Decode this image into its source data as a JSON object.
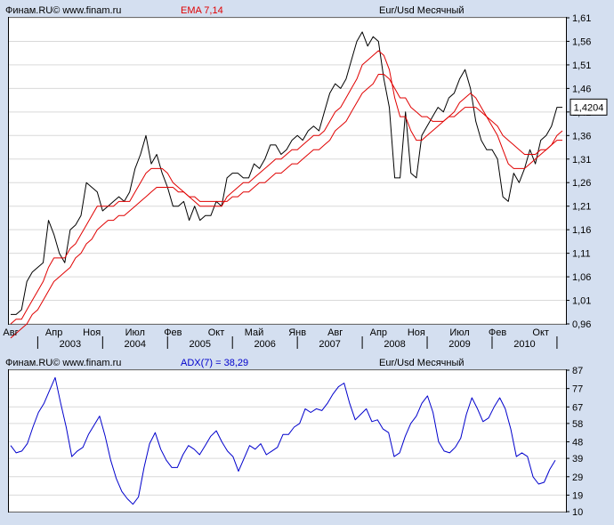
{
  "colors": {
    "background": "#d4dff0",
    "plot_background": "#ffffff",
    "price_line": "#000000",
    "ema_line": "#e00000",
    "adx_line": "#0000cc",
    "current_value_box": "#ffffff",
    "grid": "#d9d9d9"
  },
  "top_header": {
    "source": "Финам.RU© www.finam.ru",
    "indicator": "EMA 7,14",
    "instrument": "Eur/Usd Месячный"
  },
  "bottom_header": {
    "source": "Финам.RU© www.finam.ru",
    "indicator": "ADX(7) = 38,29",
    "instrument": "Eur/Usd Месячный"
  },
  "x_axis": {
    "month_labels": [
      "Авг",
      "Апр",
      "Ноя",
      "Июл",
      "Фев",
      "Окт",
      "Май",
      "Янв",
      "Авг",
      "Апр",
      "Ноя",
      "Июл",
      "Фев",
      "Окт"
    ],
    "year_labels": [
      "2003",
      "2004",
      "2005",
      "2006",
      "2007",
      "2008",
      "2009",
      "2010"
    ]
  },
  "chart_data": [
    {
      "type": "line",
      "title": "",
      "x_start": "2002-08",
      "x_end": "2010-12",
      "ylim": [
        0.96,
        1.61
      ],
      "yticks": [
        "1,61",
        "1,56",
        "1,51",
        "1,46",
        "1,41",
        "1,36",
        "1,31",
        "1,26",
        "1,21",
        "1,16",
        "1,11",
        "1,06",
        "1,01",
        "0,96"
      ],
      "grid": false,
      "current_value_label": "1,4204",
      "current_value": 1.4204,
      "series": [
        {
          "name": "Eur/Usd",
          "color": "#000000",
          "values": [
            0.98,
            0.98,
            0.99,
            1.05,
            1.07,
            1.08,
            1.09,
            1.18,
            1.15,
            1.11,
            1.09,
            1.16,
            1.17,
            1.19,
            1.26,
            1.25,
            1.24,
            1.2,
            1.21,
            1.22,
            1.23,
            1.22,
            1.24,
            1.29,
            1.32,
            1.36,
            1.3,
            1.32,
            1.28,
            1.25,
            1.21,
            1.21,
            1.22,
            1.18,
            1.21,
            1.18,
            1.19,
            1.19,
            1.22,
            1.21,
            1.27,
            1.28,
            1.28,
            1.27,
            1.27,
            1.3,
            1.29,
            1.31,
            1.34,
            1.34,
            1.32,
            1.33,
            1.35,
            1.36,
            1.35,
            1.37,
            1.38,
            1.37,
            1.41,
            1.45,
            1.47,
            1.46,
            1.48,
            1.52,
            1.56,
            1.58,
            1.55,
            1.57,
            1.56,
            1.48,
            1.42,
            1.27,
            1.27,
            1.41,
            1.28,
            1.27,
            1.36,
            1.38,
            1.4,
            1.42,
            1.41,
            1.44,
            1.45,
            1.48,
            1.5,
            1.46,
            1.39,
            1.35,
            1.33,
            1.33,
            1.31,
            1.23,
            1.22,
            1.28,
            1.26,
            1.29,
            1.33,
            1.3,
            1.35,
            1.36,
            1.38,
            1.42,
            1.42
          ]
        },
        {
          "name": "EMA 7",
          "color": "#e00000",
          "values": [
            0.96,
            0.97,
            0.97,
            0.99,
            1.01,
            1.03,
            1.05,
            1.08,
            1.1,
            1.1,
            1.1,
            1.12,
            1.13,
            1.15,
            1.17,
            1.19,
            1.21,
            1.21,
            1.21,
            1.21,
            1.22,
            1.22,
            1.22,
            1.24,
            1.26,
            1.28,
            1.29,
            1.29,
            1.29,
            1.28,
            1.26,
            1.25,
            1.24,
            1.23,
            1.22,
            1.21,
            1.21,
            1.21,
            1.21,
            1.21,
            1.23,
            1.24,
            1.25,
            1.26,
            1.26,
            1.27,
            1.28,
            1.29,
            1.3,
            1.31,
            1.31,
            1.32,
            1.33,
            1.33,
            1.34,
            1.35,
            1.36,
            1.36,
            1.37,
            1.39,
            1.41,
            1.42,
            1.44,
            1.46,
            1.48,
            1.51,
            1.52,
            1.53,
            1.54,
            1.53,
            1.5,
            1.44,
            1.4,
            1.4,
            1.37,
            1.35,
            1.35,
            1.36,
            1.37,
            1.38,
            1.39,
            1.4,
            1.41,
            1.43,
            1.44,
            1.45,
            1.44,
            1.42,
            1.4,
            1.38,
            1.36,
            1.33,
            1.3,
            1.29,
            1.29,
            1.29,
            1.3,
            1.31,
            1.32,
            1.33,
            1.34,
            1.36,
            1.37
          ]
        },
        {
          "name": "EMA 14",
          "color": "#e00000",
          "values": [
            0.93,
            0.94,
            0.95,
            0.96,
            0.98,
            0.99,
            1.01,
            1.03,
            1.05,
            1.06,
            1.07,
            1.08,
            1.1,
            1.11,
            1.13,
            1.14,
            1.16,
            1.17,
            1.18,
            1.18,
            1.19,
            1.19,
            1.2,
            1.21,
            1.22,
            1.23,
            1.24,
            1.25,
            1.25,
            1.25,
            1.25,
            1.24,
            1.24,
            1.23,
            1.23,
            1.22,
            1.22,
            1.22,
            1.22,
            1.22,
            1.22,
            1.23,
            1.23,
            1.24,
            1.24,
            1.25,
            1.26,
            1.26,
            1.27,
            1.28,
            1.28,
            1.29,
            1.3,
            1.3,
            1.31,
            1.32,
            1.33,
            1.33,
            1.34,
            1.35,
            1.37,
            1.38,
            1.39,
            1.41,
            1.43,
            1.45,
            1.46,
            1.47,
            1.49,
            1.49,
            1.48,
            1.46,
            1.44,
            1.44,
            1.42,
            1.41,
            1.4,
            1.4,
            1.39,
            1.39,
            1.39,
            1.4,
            1.4,
            1.41,
            1.42,
            1.42,
            1.42,
            1.41,
            1.4,
            1.39,
            1.38,
            1.36,
            1.35,
            1.34,
            1.33,
            1.32,
            1.32,
            1.32,
            1.33,
            1.33,
            1.34,
            1.35,
            1.35
          ]
        }
      ]
    },
    {
      "type": "line",
      "title": "",
      "x_start": "2002-08",
      "x_end": "2010-12",
      "ylim": [
        10,
        87
      ],
      "yticks": [
        "87",
        "77",
        "67",
        "58",
        "48",
        "39",
        "29",
        "19",
        "10"
      ],
      "grid": false,
      "series": [
        {
          "name": "ADX(7)",
          "color": "#0000cc",
          "values": [
            46,
            42,
            43,
            47,
            56,
            64,
            69,
            76,
            83,
            69,
            56,
            40,
            43,
            45,
            52,
            57,
            62,
            51,
            38,
            28,
            21,
            17,
            14,
            18,
            34,
            47,
            53,
            44,
            38,
            34,
            34,
            41,
            46,
            44,
            41,
            46,
            51,
            54,
            48,
            43,
            40,
            32,
            39,
            46,
            44,
            47,
            41,
            43,
            45,
            52,
            52,
            56,
            58,
            66,
            64,
            66,
            65,
            69,
            74,
            78,
            80,
            69,
            60,
            63,
            66,
            59,
            60,
            55,
            53,
            40,
            42,
            51,
            58,
            62,
            69,
            73,
            64,
            48,
            43,
            42,
            45,
            50,
            63,
            72,
            66,
            59,
            61,
            67,
            72,
            66,
            55,
            40,
            42,
            40,
            29,
            25,
            26,
            33,
            38
          ]
        }
      ]
    }
  ]
}
